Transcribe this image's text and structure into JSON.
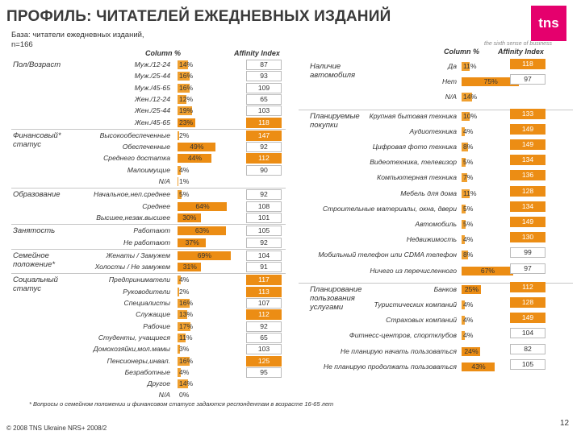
{
  "header": {
    "title": "ПРОФИЛЬ: ЧИТАТЕЛЕЙ ЕЖЕДНЕВНЫХ ИЗДАНИЙ",
    "base_line1": "База: читатели ежедневных изданий,",
    "base_line2": "n=166",
    "logo_text": "tns",
    "tagline": "the sixth sense of business"
  },
  "colors": {
    "bar": "#f0a030",
    "bar_dark": "#ec8d14",
    "highlight": "#ec8d14"
  },
  "chart_data": [
    {
      "type": "bar",
      "column_header": "Column %",
      "affinity_header": "Affinity Index",
      "affinity_threshold": 110,
      "groups": [
        {
          "name": "Пол/Возраст",
          "items": [
            {
              "label": "Муж./12-24",
              "pct": "14%",
              "value": 14,
              "affinity": 87
            },
            {
              "label": "Муж./25-44",
              "pct": "16%",
              "value": 16,
              "affinity": 93
            },
            {
              "label": "Муж./45-65",
              "pct": "16%",
              "value": 16,
              "affinity": 109
            },
            {
              "label": "Жен./12-24",
              "pct": "12%",
              "value": 12,
              "affinity": 65
            },
            {
              "label": "Жен./25-44",
              "pct": "19%",
              "value": 19,
              "affinity": 103
            },
            {
              "label": "Жен./45-65",
              "pct": "23%",
              "value": 23,
              "affinity": 118
            }
          ]
        },
        {
          "name": "Финансовый* статус",
          "items": [
            {
              "label": "Высокообеспеченные",
              "pct": "2%",
              "value": 2,
              "affinity": 147
            },
            {
              "label": "Обеспеченные",
              "pct": "49%",
              "value": 49,
              "affinity": 92
            },
            {
              "label": "Среднего достатка",
              "pct": "44%",
              "value": 44,
              "affinity": 112
            },
            {
              "label": "Малоимущие",
              "pct": "4%",
              "value": 4,
              "affinity": 90
            },
            {
              "label": "N/A",
              "pct": "1%",
              "value": 1,
              "affinity": null
            }
          ]
        },
        {
          "name": "Образование",
          "items": [
            {
              "label": "Начальное,неп.среднее",
              "pct": "5%",
              "value": 5,
              "affinity": 92
            },
            {
              "label": "Среднее",
              "pct": "64%",
              "value": 64,
              "affinity": 108
            },
            {
              "label": "Высшее,незак.высшее",
              "pct": "30%",
              "value": 30,
              "affinity": 101
            }
          ]
        },
        {
          "name": "Занятость",
          "items": [
            {
              "label": "Работают",
              "pct": "63%",
              "value": 63,
              "affinity": 105
            },
            {
              "label": "Не работают",
              "pct": "37%",
              "value": 37,
              "affinity": 92
            }
          ]
        },
        {
          "name": "Семейное положение*",
          "items": [
            {
              "label": "Женаты / Замужем",
              "pct": "69%",
              "value": 69,
              "affinity": 104
            },
            {
              "label": "Холосты / Не замужем",
              "pct": "31%",
              "value": 31,
              "affinity": 91
            }
          ]
        },
        {
          "name": "Социальный статус",
          "items": [
            {
              "label": "Предприниматели",
              "pct": "4%",
              "value": 4,
              "affinity": 117
            },
            {
              "label": "Руководители",
              "pct": "2%",
              "value": 2,
              "affinity": 113
            },
            {
              "label": "Специалисты",
              "pct": "16%",
              "value": 16,
              "affinity": 107
            },
            {
              "label": "Служащие",
              "pct": "13%",
              "value": 13,
              "affinity": 112
            },
            {
              "label": "Рабочие",
              "pct": "17%",
              "value": 17,
              "affinity": 92
            },
            {
              "label": "Студенты, учащиеся",
              "pct": "11%",
              "value": 11,
              "affinity": 65
            },
            {
              "label": "Домохозяйки,мол.мамы",
              "pct": "3%",
              "value": 3,
              "affinity": 103
            },
            {
              "label": "Пенсионеры,инвал.",
              "pct": "16%",
              "value": 16,
              "affinity": 125
            },
            {
              "label": "Безработные",
              "pct": "4%",
              "value": 4,
              "affinity": 95
            },
            {
              "label": "Другое",
              "pct": "14%",
              "value": 14,
              "affinity": null
            },
            {
              "label": "N/A",
              "pct": "0%",
              "value": 0,
              "affinity": null
            }
          ]
        }
      ]
    },
    {
      "type": "bar",
      "column_header": "Column %",
      "affinity_header": "Affinity Index",
      "affinity_threshold": 110,
      "groups": [
        {
          "name": "Наличие автомобиля",
          "items": [
            {
              "label": "Да",
              "pct": "11%",
              "value": 11,
              "affinity": 118
            },
            {
              "label": "Нет",
              "pct": "75%",
              "value": 75,
              "affinity": 97
            },
            {
              "label": "N/A",
              "pct": "14%",
              "value": 14,
              "affinity": null
            }
          ]
        },
        {
          "name": "Планируемые покупки",
          "items": [
            {
              "label": "Крупная бытовая техника",
              "pct": "10%",
              "value": 10,
              "affinity": 133
            },
            {
              "label": "Аудиотехника",
              "pct": "4%",
              "value": 4,
              "affinity": 149
            },
            {
              "label": "Цифровая фото техника",
              "pct": "8%",
              "value": 8,
              "affinity": 149
            },
            {
              "label": "Видеотехника, телевизор",
              "pct": "5%",
              "value": 5,
              "affinity": 134
            },
            {
              "label": "Компьютерная техника",
              "pct": "7%",
              "value": 7,
              "affinity": 136
            },
            {
              "label": "Мебель для дома",
              "pct": "11%",
              "value": 11,
              "affinity": 128
            },
            {
              "label": "Строительные материалы, окна, двери",
              "pct": "5%",
              "value": 5,
              "affinity": 134
            },
            {
              "label": "Автомобиль",
              "pct": "5%",
              "value": 5,
              "affinity": 149
            },
            {
              "label": "Недвижимость",
              "pct": "4%",
              "value": 4,
              "affinity": 130
            },
            {
              "label": "Мобильный телефон или CDMA телефон",
              "pct": "8%",
              "value": 8,
              "affinity": 99
            },
            {
              "label": "Ничего из перечисленного",
              "pct": "67%",
              "value": 67,
              "affinity": 97
            }
          ]
        },
        {
          "name": "Планирование пользования услугами",
          "items": [
            {
              "label": "Банков",
              "pct": "25%",
              "value": 25,
              "affinity": 112
            },
            {
              "label": "Туристических компаний",
              "pct": "4%",
              "value": 4,
              "affinity": 128
            },
            {
              "label": "Страховых компаний",
              "pct": "4%",
              "value": 4,
              "affinity": 149
            },
            {
              "label": "Фитнесс-центров, спортклубов",
              "pct": "4%",
              "value": 4,
              "affinity": 104
            },
            {
              "label": "Не планирую начать пользоваться",
              "pct": "24%",
              "value": 24,
              "affinity": 82
            },
            {
              "label": "Не планирую продолжать пользоваться",
              "pct": "43%",
              "value": 43,
              "affinity": 105
            }
          ]
        }
      ]
    }
  ],
  "footnote": "* Вопросы о семейном положении и финансовом статусе задаются респондентам в возрасте 16-65 лет",
  "copyright": "© 2008 TNS Ukraine NRS+ 2008/2",
  "page_number": "12"
}
